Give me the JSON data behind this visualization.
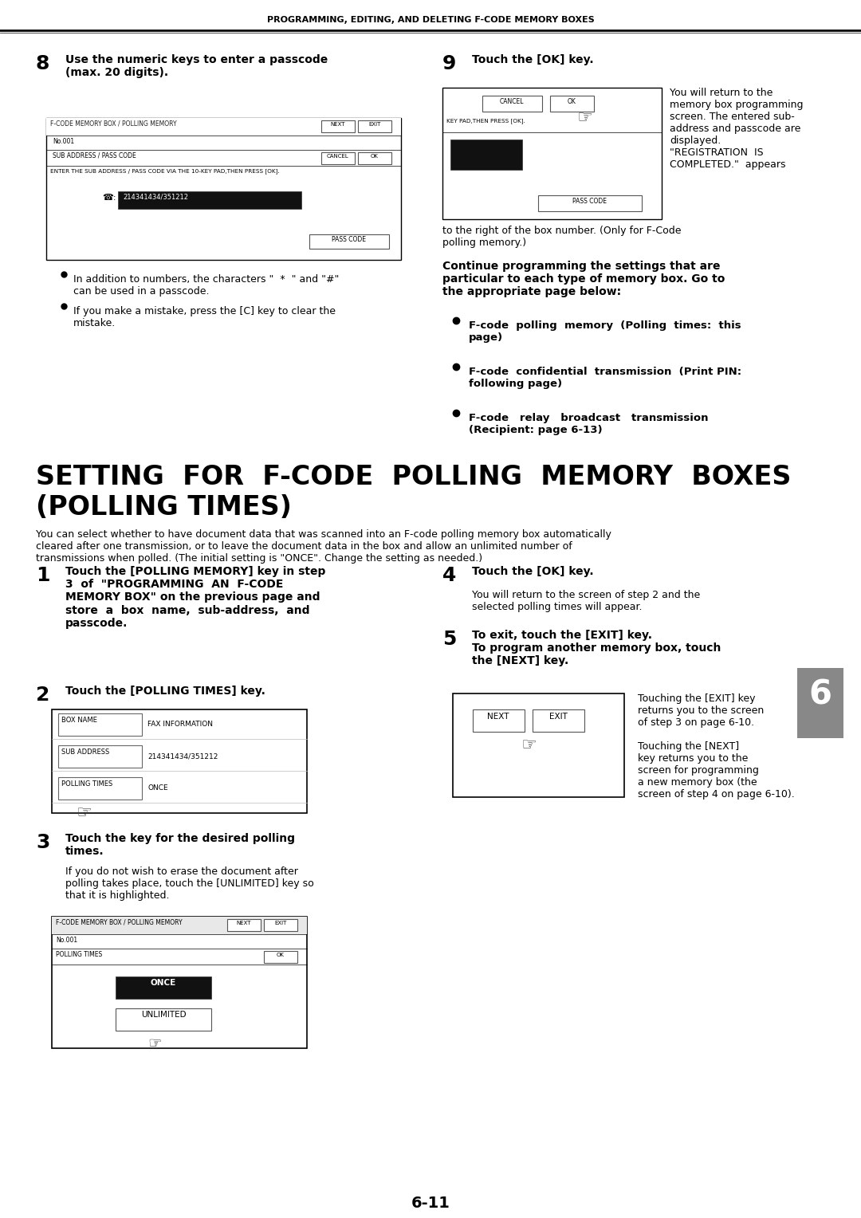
{
  "page_bg": "#ffffff",
  "header_text": "PROGRAMMING, EDITING, AND DELETING F-CODE MEMORY BOXES",
  "page_number": "6-11",
  "section_title_line1": "SETTING  FOR  F-CODE  POLLING  MEMORY  BOXES",
  "section_title_line2": "(POLLING TIMES)",
  "section_desc": "You can select whether to have document data that was scanned into an F-code polling memory box automatically\ncleared after one transmission, or to leave the document data in the box and allow an unlimited number of\ntransmissions when polled. (The initial setting is \"ONCE\". Change the setting as needed.)",
  "step8_num": "8",
  "step8_title": "Use the numeric keys to enter a passcode\n(max. 20 digits).",
  "step8_bullet1": "In addition to numbers, the characters \"  *  \" and \"#\"\ncan be used in a passcode.",
  "step8_bullet2": "If you make a mistake, press the [C] key to clear the\nmistake.",
  "step9_num": "9",
  "step9_title": "Touch the [OK] key.",
  "step9_desc_right": "You will return to the\nmemory box programming\nscreen. The entered sub-\naddress and passcode are\ndisplayed.\n\"REGISTRATION  IS\nCOMPLETED.\"  appears",
  "step9_desc_below": "to the right of the box number. (Only for F-Code\npolling memory.)",
  "continue_bold": "Continue programming the settings that are\nparticular to each type of memory box. Go to\nthe appropriate page below:",
  "cont_b1": "F-code  polling  memory  (Polling  times:  this\npage)",
  "cont_b2": "F-code  confidential  transmission  (Print PIN:\nfollowing page)",
  "cont_b3": "F-code   relay   broadcast   transmission\n(Recipient: page 6-13)",
  "step1_num": "1",
  "step1_title": "Touch the [POLLING MEMORY] key in step\n3  of  \"PROGRAMMING  AN  F-CODE\nMEMORY BOX\" on the previous page and\nstore  a  box  name,  sub-address,  and\npasscode.",
  "step2_num": "2",
  "step2_title": "Touch the [POLLING TIMES] key.",
  "step3_num": "3",
  "step3_title": "Touch the key for the desired polling\ntimes.",
  "step3_text": "If you do not wish to erase the document after\npolling takes place, touch the [UNLIMITED] key so\nthat it is highlighted.",
  "step4_num": "4",
  "step4_title": "Touch the [OK] key.",
  "step4_text": "You will return to the screen of step 2 and the\nselected polling times will appear.",
  "step5_num": "5",
  "step5_title": "To exit, touch the [EXIT] key.\nTo program another memory box, touch\nthe [NEXT] key.",
  "step5_right": "Touching the [EXIT] key\nreturns you to the screen\nof step 3 on page 6-10.\n\nTouching the [NEXT]\nkey returns you to the\nscreen for programming\na new memory box (the\nscreen of step 4 on page 6-10).",
  "sidebar_num": "6"
}
